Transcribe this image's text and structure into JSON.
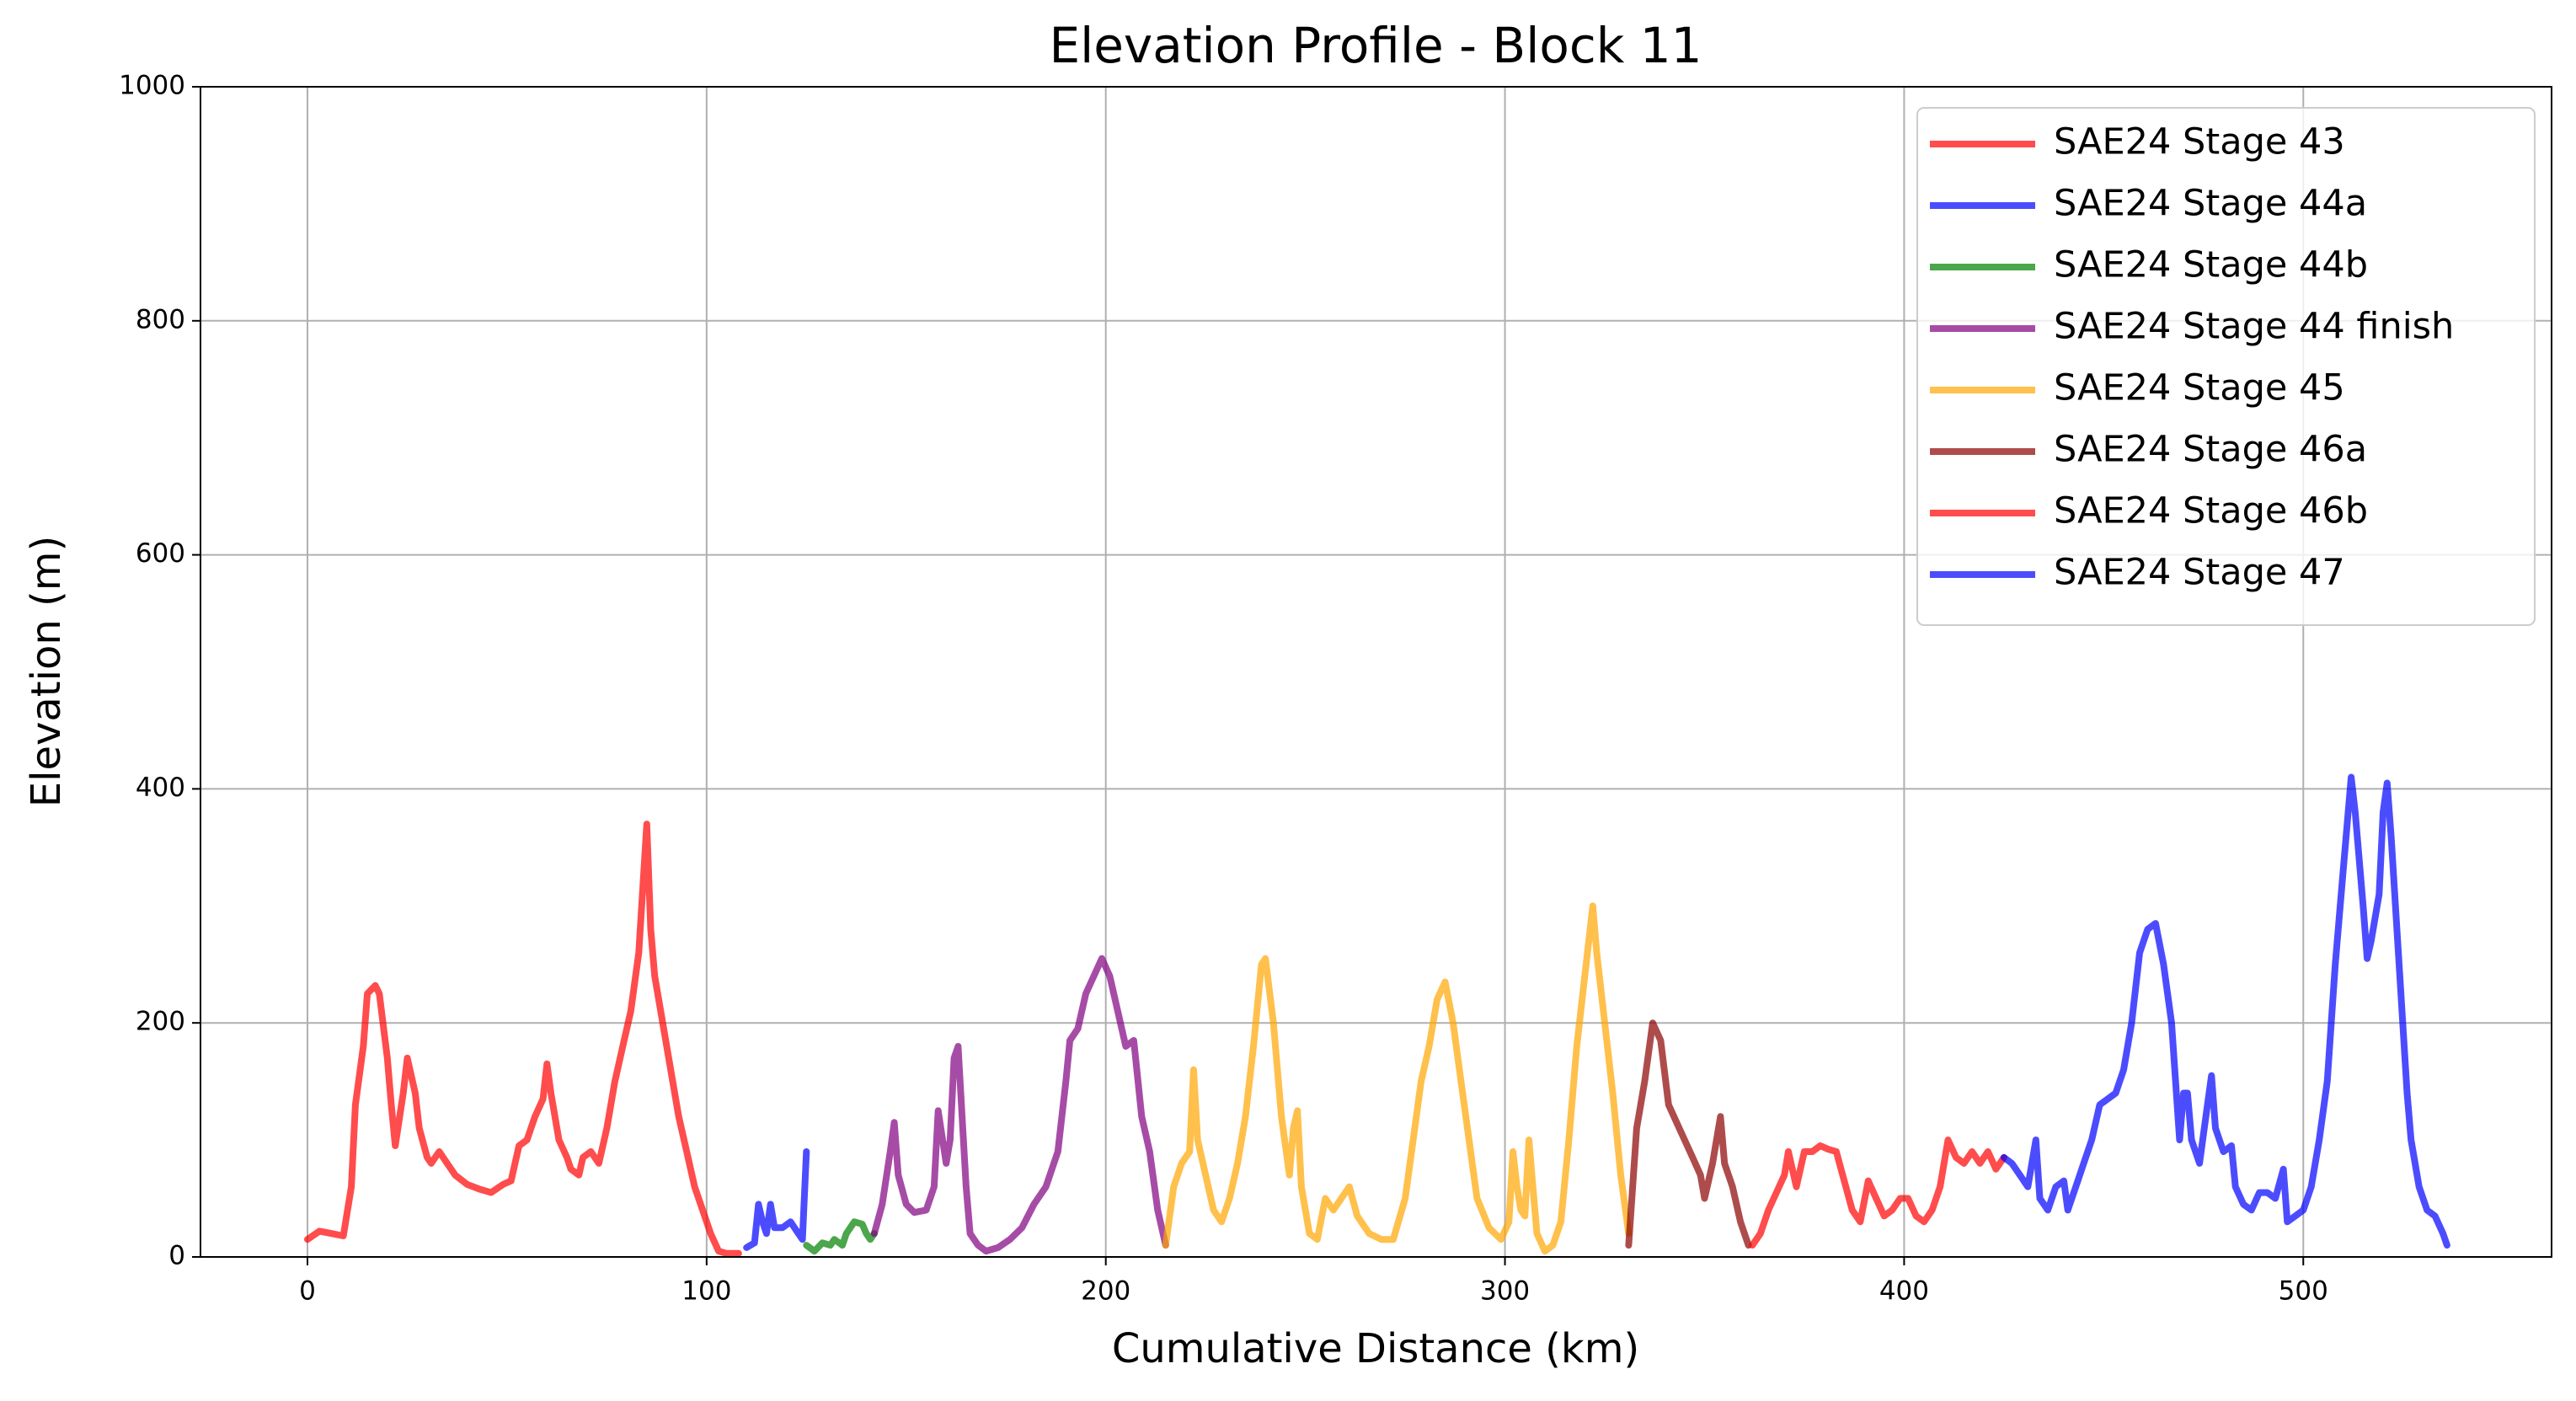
{
  "chart_data": {
    "type": "line",
    "title": "Elevation Profile - Block 11",
    "x_label": "Cumulative Distance (km)",
    "y_label": "Elevation (m)",
    "xlim": [
      -26.8,
      562.2
    ],
    "ylim": [
      0,
      1000
    ],
    "xticks": [
      0,
      100,
      200,
      300,
      400,
      500
    ],
    "yticks": [
      0,
      200,
      400,
      600,
      800,
      1000
    ],
    "grid": true,
    "legend": "upper right",
    "series": [
      {
        "name": "SAE24 Stage 43",
        "color": "red",
        "x": [
          0,
          3,
          6,
          9,
          11,
          12,
          14,
          15,
          17,
          18,
          20,
          21,
          22,
          24,
          25,
          27,
          28,
          30,
          31,
          33,
          35,
          37,
          40,
          43,
          46,
          49,
          51,
          53,
          55,
          57,
          59,
          60,
          61,
          63,
          65,
          66,
          68,
          69,
          71,
          73,
          75,
          77,
          79,
          81,
          83,
          85,
          86,
          87,
          89,
          91,
          93,
          95,
          97,
          99,
          101,
          103,
          105,
          108
        ],
        "values": [
          15,
          22,
          20,
          18,
          60,
          130,
          180,
          225,
          232,
          225,
          170,
          130,
          95,
          140,
          170,
          140,
          110,
          85,
          80,
          90,
          80,
          70,
          62,
          58,
          55,
          62,
          65,
          95,
          100,
          120,
          135,
          165,
          140,
          100,
          85,
          75,
          70,
          85,
          90,
          80,
          110,
          150,
          180,
          210,
          260,
          370,
          280,
          240,
          200,
          160,
          120,
          90,
          60,
          40,
          20,
          5,
          3,
          3
        ]
      },
      {
        "name": "SAE24 Stage 44a",
        "color": "blue",
        "x": [
          110,
          112,
          113,
          114,
          115,
          116,
          117,
          119,
          121,
          123,
          124,
          125
        ],
        "values": [
          8,
          12,
          45,
          30,
          20,
          45,
          25,
          25,
          30,
          20,
          15,
          90
        ]
      },
      {
        "name": "SAE24 Stage 44b",
        "color": "green",
        "x": [
          125,
          127,
          129,
          131,
          132,
          134,
          135,
          137,
          139,
          140,
          141,
          142
        ],
        "values": [
          10,
          5,
          12,
          10,
          15,
          10,
          20,
          30,
          28,
          20,
          15,
          20
        ]
      },
      {
        "name": "SAE24 Stage 44 finish",
        "color": "purple",
        "x": [
          142,
          144,
          146,
          147,
          148,
          150,
          152,
          155,
          157,
          158,
          160,
          161,
          162,
          163,
          164,
          165,
          166,
          168,
          170,
          173,
          176,
          179,
          182,
          185,
          188,
          190,
          191,
          193,
          195,
          197,
          199,
          201,
          203,
          205,
          207,
          209,
          211,
          213,
          215
        ],
        "values": [
          20,
          45,
          90,
          115,
          70,
          45,
          38,
          40,
          60,
          125,
          80,
          100,
          170,
          180,
          120,
          60,
          20,
          10,
          5,
          8,
          15,
          25,
          45,
          60,
          90,
          150,
          185,
          195,
          225,
          240,
          255,
          240,
          210,
          180,
          185,
          120,
          90,
          40,
          10
        ]
      },
      {
        "name": "SAE24 Stage 45",
        "color": "orange",
        "x": [
          215,
          217,
          219,
          221,
          222,
          223,
          225,
          227,
          229,
          231,
          233,
          235,
          237,
          239,
          240,
          242,
          244,
          246,
          247,
          248,
          249,
          251,
          253,
          255,
          257,
          259,
          261,
          263,
          266,
          269,
          272,
          275,
          277,
          279,
          281,
          283,
          285,
          287,
          289,
          291,
          293,
          296,
          299,
          301,
          302,
          303,
          304,
          305,
          306,
          307,
          308,
          310,
          312,
          314,
          316,
          318,
          320,
          322,
          323,
          325,
          327,
          329,
          331
        ],
        "values": [
          10,
          60,
          80,
          90,
          160,
          100,
          70,
          40,
          30,
          50,
          80,
          120,
          180,
          250,
          255,
          200,
          120,
          70,
          110,
          125,
          60,
          20,
          15,
          50,
          40,
          50,
          60,
          35,
          20,
          15,
          15,
          50,
          100,
          150,
          180,
          220,
          235,
          200,
          150,
          100,
          50,
          25,
          15,
          30,
          90,
          60,
          40,
          35,
          100,
          60,
          20,
          5,
          10,
          30,
          100,
          180,
          240,
          300,
          260,
          200,
          140,
          70,
          20
        ]
      },
      {
        "name": "SAE24 Stage 46a",
        "color": "darkred",
        "x": [
          331,
          333,
          335,
          337,
          339,
          341,
          343,
          345,
          347,
          349,
          350,
          352,
          354,
          355,
          357,
          359,
          361
        ],
        "values": [
          10,
          110,
          150,
          200,
          185,
          130,
          115,
          100,
          85,
          70,
          50,
          80,
          120,
          80,
          60,
          30,
          10
        ]
      },
      {
        "name": "SAE24 Stage 46b",
        "color": "red",
        "x": [
          362,
          364,
          366,
          368,
          370,
          371,
          373,
          375,
          377,
          379,
          381,
          383,
          385,
          387,
          389,
          391,
          393,
          395,
          397,
          399,
          401,
          403,
          405,
          407,
          409,
          411,
          413,
          415,
          417,
          419,
          421,
          423,
          425
        ],
        "values": [
          10,
          20,
          40,
          55,
          70,
          90,
          60,
          90,
          90,
          95,
          92,
          90,
          65,
          40,
          30,
          65,
          50,
          35,
          40,
          50,
          50,
          35,
          30,
          40,
          60,
          100,
          85,
          80,
          90,
          80,
          90,
          75,
          85
        ]
      },
      {
        "name": "SAE24 Stage 47",
        "color": "blue",
        "x": [
          425,
          427,
          429,
          431,
          433,
          434,
          436,
          438,
          440,
          441,
          443,
          445,
          447,
          449,
          451,
          453,
          455,
          457,
          459,
          461,
          463,
          465,
          467,
          469,
          470,
          471,
          472,
          474,
          476,
          477,
          478,
          480,
          482,
          483,
          485,
          487,
          489,
          491,
          493,
          495,
          496,
          498,
          500,
          502,
          504,
          506,
          508,
          510,
          512,
          513,
          515,
          516,
          517,
          519,
          520,
          521,
          522,
          524,
          526,
          527,
          529,
          531,
          533,
          535,
          536
        ],
        "values": [
          85,
          80,
          70,
          60,
          100,
          50,
          40,
          60,
          65,
          40,
          60,
          80,
          100,
          130,
          135,
          140,
          160,
          200,
          260,
          280,
          285,
          250,
          200,
          100,
          140,
          140,
          100,
          80,
          130,
          155,
          110,
          90,
          95,
          60,
          45,
          40,
          55,
          55,
          50,
          75,
          30,
          35,
          40,
          60,
          100,
          150,
          250,
          330,
          410,
          380,
          300,
          255,
          270,
          310,
          380,
          405,
          360,
          250,
          140,
          100,
          60,
          40,
          35,
          20,
          10
        ]
      }
    ]
  }
}
